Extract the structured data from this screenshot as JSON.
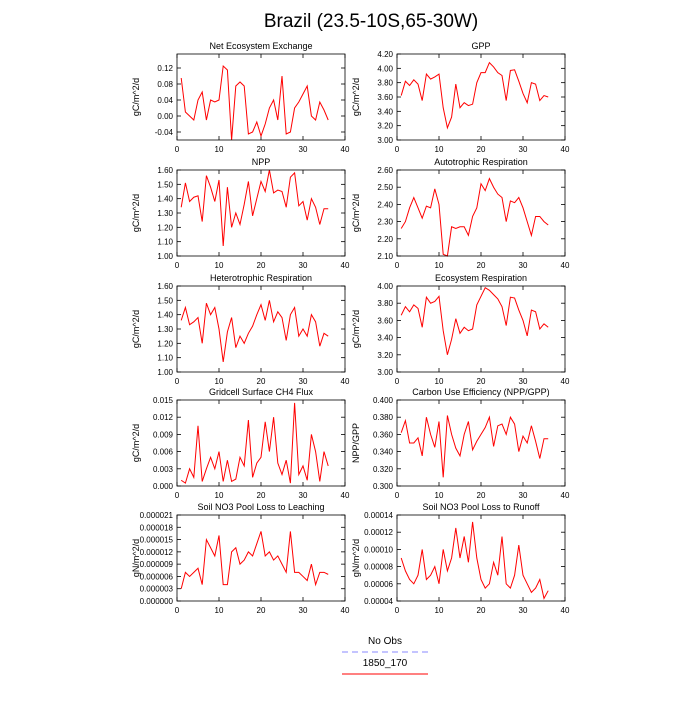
{
  "title": "Brazil (23.5-10S,65-30W)",
  "legend": [
    {
      "label": "No Obs",
      "color": "#8888ff",
      "dash": true
    },
    {
      "label": "1850_170",
      "color": "#ff0000",
      "dash": false
    }
  ],
  "chart_data": [
    {
      "type": "line",
      "title": "Net Ecosystem Exchange",
      "ylabel": "gC/m^2/d",
      "x": [
        1,
        2,
        3,
        4,
        5,
        6,
        7,
        8,
        9,
        10,
        11,
        12,
        13,
        14,
        15,
        16,
        17,
        18,
        19,
        20,
        21,
        22,
        23,
        24,
        25,
        26,
        27,
        28,
        29,
        30,
        31,
        32,
        33,
        34,
        35,
        36
      ],
      "series": [
        {
          "color": "#ff0000",
          "values": [
            0.095,
            0.01,
            0.0,
            -0.01,
            0.04,
            0.06,
            -0.01,
            0.04,
            0.035,
            0.04,
            0.125,
            0.115,
            -0.06,
            0.075,
            0.085,
            0.075,
            -0.045,
            -0.04,
            -0.015,
            -0.05,
            -0.02,
            0.02,
            0.04,
            -0.01,
            0.1,
            -0.045,
            -0.04,
            0.02,
            0.035,
            0.055,
            0.075,
            0.0,
            -0.01,
            0.035,
            0.015,
            -0.01
          ]
        }
      ],
      "xlim": [
        0,
        40
      ],
      "xticks": [
        0,
        10,
        20,
        30,
        40
      ],
      "ylim": [
        -0.06,
        0.155
      ],
      "yticks": [
        -0.04,
        {
          "value": 0,
          "label": "0.00"
        },
        0.04,
        0.08,
        0.12
      ]
    },
    {
      "type": "line",
      "title": "GPP",
      "ylabel": "gC/m^2/d",
      "x": [
        1,
        2,
        3,
        4,
        5,
        6,
        7,
        8,
        9,
        10,
        11,
        12,
        13,
        14,
        15,
        16,
        17,
        18,
        19,
        20,
        21,
        22,
        23,
        24,
        25,
        26,
        27,
        28,
        29,
        30,
        31,
        32,
        33,
        34,
        35,
        36
      ],
      "series": [
        {
          "color": "#ff0000",
          "values": [
            3.62,
            3.82,
            3.76,
            3.84,
            3.78,
            3.55,
            3.92,
            3.85,
            3.88,
            3.92,
            3.45,
            3.17,
            3.32,
            3.78,
            3.45,
            3.52,
            3.48,
            3.5,
            3.8,
            3.94,
            3.94,
            4.08,
            4.02,
            3.94,
            3.9,
            3.55,
            3.97,
            3.98,
            3.82,
            3.65,
            3.52,
            3.8,
            3.78,
            3.55,
            3.62,
            3.6
          ]
        }
      ],
      "xlim": [
        0,
        40
      ],
      "xticks": [
        0,
        10,
        20,
        30,
        40
      ],
      "ylim": [
        3.0,
        4.2
      ],
      "yticks": [
        {
          "value": 3.0,
          "label": "3.00"
        },
        {
          "value": 3.2,
          "label": "3.20"
        },
        {
          "value": 3.4,
          "label": "3.40"
        },
        {
          "value": 3.6,
          "label": "3.60"
        },
        {
          "value": 3.8,
          "label": "3.80"
        },
        {
          "value": 4.0,
          "label": "4.00"
        },
        {
          "value": 4.2,
          "label": "4.20"
        }
      ]
    },
    {
      "type": "line",
      "title": "NPP",
      "ylabel": "gC/m^2/d",
      "x": [
        1,
        2,
        3,
        4,
        5,
        6,
        7,
        8,
        9,
        10,
        11,
        12,
        13,
        14,
        15,
        16,
        17,
        18,
        19,
        20,
        21,
        22,
        23,
        24,
        25,
        26,
        27,
        28,
        29,
        30,
        31,
        32,
        33,
        34,
        35,
        36
      ],
      "series": [
        {
          "color": "#ff0000",
          "values": [
            1.34,
            1.51,
            1.38,
            1.41,
            1.42,
            1.24,
            1.56,
            1.48,
            1.38,
            1.53,
            1.07,
            1.48,
            1.2,
            1.3,
            1.22,
            1.36,
            1.52,
            1.28,
            1.4,
            1.52,
            1.45,
            1.6,
            1.44,
            1.46,
            1.45,
            1.34,
            1.55,
            1.58,
            1.35,
            1.38,
            1.25,
            1.4,
            1.34,
            1.22,
            1.33,
            1.33
          ]
        }
      ],
      "xlim": [
        0,
        40
      ],
      "xticks": [
        0,
        10,
        20,
        30,
        40
      ],
      "ylim": [
        1.0,
        1.6
      ],
      "yticks": [
        {
          "value": 1.0,
          "label": "1.00"
        },
        {
          "value": 1.1,
          "label": "1.10"
        },
        {
          "value": 1.2,
          "label": "1.20"
        },
        {
          "value": 1.3,
          "label": "1.30"
        },
        {
          "value": 1.4,
          "label": "1.40"
        },
        {
          "value": 1.5,
          "label": "1.50"
        },
        {
          "value": 1.6,
          "label": "1.60"
        }
      ]
    },
    {
      "type": "line",
      "title": "Autotrophic Respiration",
      "ylabel": "gC/m^2/d",
      "x": [
        1,
        2,
        3,
        4,
        5,
        6,
        7,
        8,
        9,
        10,
        11,
        12,
        13,
        14,
        15,
        16,
        17,
        18,
        19,
        20,
        21,
        22,
        23,
        24,
        25,
        26,
        27,
        28,
        29,
        30,
        31,
        32,
        33,
        34,
        35,
        36
      ],
      "series": [
        {
          "color": "#ff0000",
          "values": [
            2.26,
            2.3,
            2.38,
            2.44,
            2.38,
            2.32,
            2.39,
            2.38,
            2.49,
            2.4,
            2.11,
            2.1,
            2.27,
            2.26,
            2.27,
            2.27,
            2.22,
            2.33,
            2.38,
            2.52,
            2.48,
            2.55,
            2.5,
            2.46,
            2.44,
            2.3,
            2.42,
            2.41,
            2.44,
            2.38,
            2.3,
            2.22,
            2.33,
            2.33,
            2.3,
            2.28
          ]
        }
      ],
      "xlim": [
        0,
        40
      ],
      "xticks": [
        0,
        10,
        20,
        30,
        40
      ],
      "ylim": [
        2.1,
        2.6
      ],
      "yticks": [
        {
          "value": 2.1,
          "label": "2.10"
        },
        {
          "value": 2.2,
          "label": "2.20"
        },
        {
          "value": 2.3,
          "label": "2.30"
        },
        {
          "value": 2.4,
          "label": "2.40"
        },
        {
          "value": 2.5,
          "label": "2.50"
        },
        {
          "value": 2.6,
          "label": "2.60"
        }
      ]
    },
    {
      "type": "line",
      "title": "Heterotrophic Respiration",
      "ylabel": "gC/m^2/d",
      "x": [
        1,
        2,
        3,
        4,
        5,
        6,
        7,
        8,
        9,
        10,
        11,
        12,
        13,
        14,
        15,
        16,
        17,
        18,
        19,
        20,
        21,
        22,
        23,
        24,
        25,
        26,
        27,
        28,
        29,
        30,
        31,
        32,
        33,
        34,
        35,
        36
      ],
      "series": [
        {
          "color": "#ff0000",
          "values": [
            1.36,
            1.45,
            1.33,
            1.35,
            1.38,
            1.2,
            1.48,
            1.4,
            1.45,
            1.3,
            1.07,
            1.28,
            1.38,
            1.17,
            1.25,
            1.2,
            1.27,
            1.32,
            1.4,
            1.47,
            1.36,
            1.5,
            1.35,
            1.42,
            1.38,
            1.22,
            1.4,
            1.45,
            1.25,
            1.3,
            1.25,
            1.4,
            1.35,
            1.18,
            1.27,
            1.25
          ]
        }
      ],
      "xlim": [
        0,
        40
      ],
      "xticks": [
        0,
        10,
        20,
        30,
        40
      ],
      "ylim": [
        1.0,
        1.6
      ],
      "yticks": [
        {
          "value": 1.0,
          "label": "1.00"
        },
        {
          "value": 1.1,
          "label": "1.10"
        },
        {
          "value": 1.2,
          "label": "1.20"
        },
        {
          "value": 1.3,
          "label": "1.30"
        },
        {
          "value": 1.4,
          "label": "1.40"
        },
        {
          "value": 1.5,
          "label": "1.50"
        },
        {
          "value": 1.6,
          "label": "1.60"
        }
      ]
    },
    {
      "type": "line",
      "title": "Ecosystem Respiration",
      "ylabel": "gC/m^2/d",
      "x": [
        1,
        2,
        3,
        4,
        5,
        6,
        7,
        8,
        9,
        10,
        11,
        12,
        13,
        14,
        15,
        16,
        17,
        18,
        19,
        20,
        21,
        22,
        23,
        24,
        25,
        26,
        27,
        28,
        29,
        30,
        31,
        32,
        33,
        34,
        35,
        36
      ],
      "series": [
        {
          "color": "#ff0000",
          "values": [
            3.66,
            3.76,
            3.7,
            3.78,
            3.74,
            3.52,
            3.87,
            3.8,
            3.82,
            3.88,
            3.48,
            3.2,
            3.38,
            3.62,
            3.45,
            3.52,
            3.48,
            3.5,
            3.78,
            3.88,
            3.98,
            3.95,
            3.9,
            3.85,
            3.76,
            3.54,
            3.87,
            3.86,
            3.72,
            3.6,
            3.42,
            3.72,
            3.7,
            3.5,
            3.56,
            3.52
          ]
        }
      ],
      "xlim": [
        0,
        40
      ],
      "xticks": [
        0,
        10,
        20,
        30,
        40
      ],
      "ylim": [
        3.0,
        4.0
      ],
      "yticks": [
        {
          "value": 3.0,
          "label": "3.00"
        },
        {
          "value": 3.2,
          "label": "3.20"
        },
        {
          "value": 3.4,
          "label": "3.40"
        },
        {
          "value": 3.6,
          "label": "3.60"
        },
        {
          "value": 3.8,
          "label": "3.80"
        },
        {
          "value": 4.0,
          "label": "4.00"
        }
      ]
    },
    {
      "type": "line",
      "title": "Gridcell Surface CH4 Flux",
      "ylabel": "gC/m^2/d",
      "x": [
        1,
        2,
        3,
        4,
        5,
        6,
        7,
        8,
        9,
        10,
        11,
        12,
        13,
        14,
        15,
        16,
        17,
        18,
        19,
        20,
        21,
        22,
        23,
        24,
        25,
        26,
        27,
        28,
        29,
        30,
        31,
        32,
        33,
        34,
        35,
        36
      ],
      "series": [
        {
          "color": "#ff0000",
          "values": [
            0.001,
            0.0005,
            0.003,
            0.0015,
            0.0105,
            0.0008,
            0.003,
            0.005,
            0.003,
            0.006,
            0.0008,
            0.0045,
            0.0008,
            0.0012,
            0.005,
            0.0035,
            0.0115,
            0.0015,
            0.004,
            0.005,
            0.0112,
            0.006,
            0.012,
            0.004,
            0.002,
            0.0045,
            0.0005,
            0.0145,
            0.002,
            0.0035,
            0.001,
            0.009,
            0.006,
            0.0008,
            0.006,
            0.0035
          ]
        }
      ],
      "xlim": [
        0,
        40
      ],
      "xticks": [
        0,
        10,
        20,
        30,
        40
      ],
      "ylim": [
        0,
        0.015
      ],
      "yticks": [
        {
          "value": 0,
          "label": "0.000"
        },
        0.003,
        0.006,
        0.009,
        0.012,
        0.015
      ]
    },
    {
      "type": "line",
      "title": "Carbon Use Efficiency (NPP/GPP)",
      "ylabel": "NPP/GPP",
      "x": [
        1,
        2,
        3,
        4,
        5,
        6,
        7,
        8,
        9,
        10,
        11,
        12,
        13,
        14,
        15,
        16,
        17,
        18,
        19,
        20,
        21,
        22,
        23,
        24,
        25,
        26,
        27,
        28,
        29,
        30,
        31,
        32,
        33,
        34,
        35,
        36
      ],
      "series": [
        {
          "color": "#ff0000",
          "values": [
            0.362,
            0.376,
            0.35,
            0.35,
            0.356,
            0.335,
            0.38,
            0.36,
            0.345,
            0.375,
            0.31,
            0.382,
            0.36,
            0.344,
            0.335,
            0.36,
            0.375,
            0.342,
            0.352,
            0.36,
            0.368,
            0.38,
            0.346,
            0.37,
            0.372,
            0.36,
            0.38,
            0.372,
            0.34,
            0.358,
            0.35,
            0.37,
            0.352,
            0.332,
            0.355,
            0.355
          ]
        }
      ],
      "xlim": [
        0,
        40
      ],
      "xticks": [
        0,
        10,
        20,
        30,
        40
      ],
      "ylim": [
        0.3,
        0.4
      ],
      "yticks": [
        {
          "value": 0.3,
          "label": "0.300"
        },
        {
          "value": 0.32,
          "label": "0.320"
        },
        {
          "value": 0.34,
          "label": "0.340"
        },
        {
          "value": 0.36,
          "label": "0.360"
        },
        {
          "value": 0.38,
          "label": "0.380"
        },
        {
          "value": 0.4,
          "label": "0.400"
        }
      ]
    },
    {
      "type": "line",
      "title": "Soil NO3 Pool Loss to Leaching",
      "ylabel": "gN/m^2/d",
      "x": [
        1,
        2,
        3,
        4,
        5,
        6,
        7,
        8,
        9,
        10,
        11,
        12,
        13,
        14,
        15,
        16,
        17,
        18,
        19,
        20,
        21,
        22,
        23,
        24,
        25,
        26,
        27,
        28,
        29,
        30,
        31,
        32,
        33,
        34,
        35,
        36
      ],
      "series": [
        {
          "color": "#ff0000",
          "values": [
            3e-06,
            7e-06,
            6e-06,
            7e-06,
            8e-06,
            4e-06,
            1.5e-05,
            1.3e-05,
            1.1e-05,
            1.6e-05,
            4e-06,
            4e-06,
            1.2e-05,
            1.3e-05,
            9e-06,
            1e-05,
            1.2e-05,
            1.1e-05,
            1.4e-05,
            1.7e-05,
            1.1e-05,
            1.2e-05,
            1e-05,
            1.1e-05,
            9e-06,
            7e-06,
            1.7e-05,
            7e-06,
            7e-06,
            6e-06,
            5e-06,
            9e-06,
            4e-06,
            7e-06,
            7e-06,
            6.5e-06
          ]
        }
      ],
      "xlim": [
        0,
        40
      ],
      "xticks": [
        0,
        10,
        20,
        30,
        40
      ],
      "ylim": [
        0,
        2.1e-05
      ],
      "yticks": [
        {
          "value": 0,
          "label": "0.000000"
        },
        {
          "value": 3e-06,
          "label": "0.000003"
        },
        {
          "value": 6e-06,
          "label": "0.000006"
        },
        {
          "value": 9e-06,
          "label": "0.000009"
        },
        {
          "value": 1.2e-05,
          "label": "0.000012"
        },
        {
          "value": 1.5e-05,
          "label": "0.000015"
        },
        {
          "value": 1.8e-05,
          "label": "0.000018"
        },
        {
          "value": 2.1e-05,
          "label": "0.000021"
        }
      ]
    },
    {
      "type": "line",
      "title": "Soil NO3 Pool Loss to Runoff",
      "ylabel": "gN/m^2/d",
      "x": [
        1,
        2,
        3,
        4,
        5,
        6,
        7,
        8,
        9,
        10,
        11,
        12,
        13,
        14,
        15,
        16,
        17,
        18,
        19,
        20,
        21,
        22,
        23,
        24,
        25,
        26,
        27,
        28,
        29,
        30,
        31,
        32,
        33,
        34,
        35,
        36
      ],
      "series": [
        {
          "color": "#ff0000",
          "values": [
            9e-05,
            7.5e-05,
            6.5e-05,
            6e-05,
            7e-05,
            0.0001,
            6.5e-05,
            7e-05,
            8e-05,
            6e-05,
            0.0001,
            7.5e-05,
            9e-05,
            0.000125,
            9e-05,
            0.000115,
            8.5e-05,
            0.000132,
            9e-05,
            6.5e-05,
            5.5e-05,
            6e-05,
            8.5e-05,
            7e-05,
            0.000115,
            6e-05,
            5.5e-05,
            7e-05,
            0.000105,
            7e-05,
            6e-05,
            5e-05,
            5.5e-05,
            6.5e-05,
            4.3e-05,
            5.2e-05
          ]
        }
      ],
      "xlim": [
        0,
        40
      ],
      "xticks": [
        0,
        10,
        20,
        30,
        40
      ],
      "ylim": [
        4e-05,
        0.00014
      ],
      "yticks": [
        {
          "value": 4e-05,
          "label": "0.00004"
        },
        {
          "value": 6e-05,
          "label": "0.00006"
        },
        {
          "value": 8e-05,
          "label": "0.00008"
        },
        {
          "value": 0.0001,
          "label": "0.00010"
        },
        {
          "value": 0.00012,
          "label": "0.00012"
        },
        {
          "value": 0.00014,
          "label": "0.00014"
        }
      ]
    }
  ]
}
